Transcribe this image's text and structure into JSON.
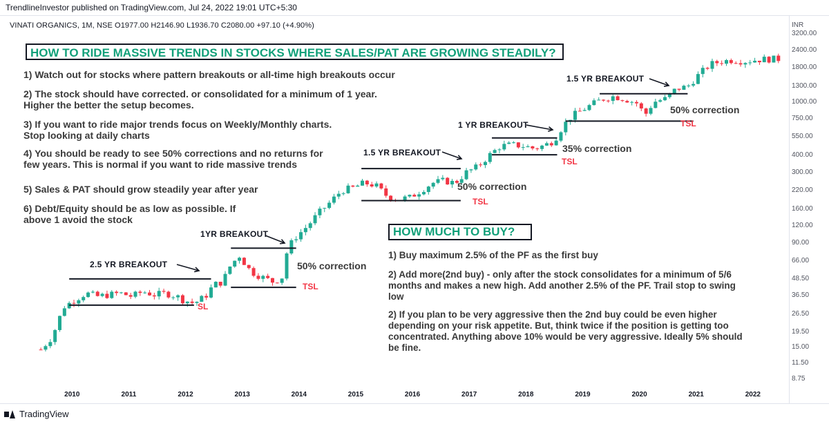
{
  "header": {
    "published": "TrendlineInvestor published on TradingView.com, Jul 24, 2022 19:01 UTC+5:30",
    "symbol_line": "VINATI ORGANICS, 1M, NSE  O1977.00  H2146.90  L1936.70  C2080.00  +97.10 (+4.90%)",
    "currency": "INR"
  },
  "footer": {
    "brand": "TradingView",
    "logo_icon": "tradingview-logo-icon"
  },
  "colors": {
    "up": "#22ab94",
    "down": "#f23645",
    "accent_text": "#12a07a",
    "bg": "#ffffff"
  },
  "title": "HOW TO RIDE MASSIVE TRENDS IN STOCKS WHERE SALES/PAT ARE GROWING STEADILY?",
  "rules": [
    "1) Watch out for stocks where pattern breakouts or all-time high breakouts occur",
    "2) The stock should have corrected. or consolidated for a minimum of 1 year.\nHigher the better the setup becomes.",
    "3) If you want to ride major trends focus on Weekly/Monthly charts.\nStop looking at daily charts",
    "4) You should be ready to see 50% corrections and no returns for\nfew years. This is normal if you want to ride massive trends",
    "5) Sales & PAT should grow steadily year after year",
    "6) Debt/Equity should be as low as possible. If\nabove 1 avoid the stock"
  ],
  "buy_title": "HOW MUCH TO BUY?",
  "buy_rules": [
    "1) Buy maximum 2.5% of the PF as the first buy",
    "2) Add more(2nd buy) - only after the stock consolidates for a minimum of 5/6\nmonths and makes a new high. Add another 2.5% of the PF. Trail stop to swing\nlow",
    "2) If you plan to be very aggressive then the 2nd buy could be even higher\ndepending on your risk appetite.  But, think twice if the position is getting too\nconcentrated. Anything above 10% would be very aggressive. Ideally 5% should\nbe fine."
  ],
  "annotations": {
    "b1": "2.5 YR BREAKOUT",
    "sl": "SL",
    "b2": "1YR BREAKOUT",
    "c1": "50% correction",
    "tsl1": "TSL",
    "b3": "1.5 YR BREAKOUT",
    "c2": "50% correction",
    "tsl2": "TSL",
    "b4": "1 YR BREAKOUT",
    "c3": "35% correction",
    "tsl3": "TSL",
    "b5": "1.5 YR BREAKOUT",
    "c4": "50% correction",
    "tsl4": "TSL"
  },
  "chart_data": {
    "type": "candlestick",
    "title": "VINATI ORGANICS, 1M, NSE",
    "y_scale": "log",
    "y_ticks": [
      "3200.00",
      "2400.00",
      "1800.00",
      "1300.00",
      "1000.00",
      "750.00",
      "550.00",
      "400.00",
      "300.00",
      "220.00",
      "160.00",
      "120.00",
      "90.00",
      "66.00",
      "48.50",
      "36.50",
      "26.50",
      "19.50",
      "15.00",
      "11.50",
      "8.75"
    ],
    "x_ticks": [
      "2010",
      "2011",
      "2012",
      "2013",
      "2014",
      "2015",
      "2016",
      "2017",
      "2018",
      "2019",
      "2020",
      "2021",
      "2022"
    ],
    "x_range": [
      2009.45,
      2022.6
    ],
    "series_close_path": [
      [
        2009.5,
        14.5
      ],
      [
        2009.7,
        18
      ],
      [
        2009.9,
        30
      ],
      [
        2010.1,
        34
      ],
      [
        2010.3,
        38
      ],
      [
        2010.5,
        36
      ],
      [
        2010.7,
        37
      ],
      [
        2010.9,
        38
      ],
      [
        2011.1,
        36
      ],
      [
        2011.3,
        39
      ],
      [
        2011.5,
        37
      ],
      [
        2011.7,
        38
      ],
      [
        2011.9,
        36
      ],
      [
        2012.0,
        34
      ],
      [
        2012.2,
        32
      ],
      [
        2012.4,
        36
      ],
      [
        2012.55,
        44
      ],
      [
        2012.7,
        46
      ],
      [
        2012.85,
        62
      ],
      [
        2013.0,
        72
      ],
      [
        2013.2,
        55
      ],
      [
        2013.4,
        50
      ],
      [
        2013.6,
        46
      ],
      [
        2013.75,
        50
      ],
      [
        2013.85,
        82
      ],
      [
        2014.0,
        100
      ],
      [
        2014.2,
        120
      ],
      [
        2014.4,
        150
      ],
      [
        2014.6,
        180
      ],
      [
        2014.8,
        220
      ],
      [
        2015.0,
        230
      ],
      [
        2015.2,
        250
      ],
      [
        2015.4,
        240
      ],
      [
        2015.6,
        200
      ],
      [
        2015.8,
        190
      ],
      [
        2016.0,
        195
      ],
      [
        2016.2,
        220
      ],
      [
        2016.4,
        250
      ],
      [
        2016.6,
        260
      ],
      [
        2016.8,
        250
      ],
      [
        2017.0,
        300
      ],
      [
        2017.2,
        330
      ],
      [
        2017.4,
        400
      ],
      [
        2017.6,
        470
      ],
      [
        2017.8,
        480
      ],
      [
        2018.0,
        470
      ],
      [
        2018.2,
        450
      ],
      [
        2018.4,
        480
      ],
      [
        2018.55,
        520
      ],
      [
        2018.7,
        660
      ],
      [
        2018.85,
        780
      ],
      [
        2019.0,
        850
      ],
      [
        2019.2,
        950
      ],
      [
        2019.4,
        1050
      ],
      [
        2019.6,
        1100
      ],
      [
        2019.8,
        1050
      ],
      [
        2020.0,
        980
      ],
      [
        2020.15,
        800
      ],
      [
        2020.3,
        1000
      ],
      [
        2020.5,
        1050
      ],
      [
        2020.7,
        1250
      ],
      [
        2020.9,
        1300
      ],
      [
        2021.1,
        1600
      ],
      [
        2021.3,
        1900
      ],
      [
        2021.5,
        2000
      ],
      [
        2021.7,
        2050
      ],
      [
        2021.9,
        2000
      ],
      [
        2022.1,
        2050
      ],
      [
        2022.3,
        2080
      ],
      [
        2022.5,
        2080
      ]
    ],
    "levels": [
      {
        "label": "2.5 YR BREAKOUT",
        "value": 48.5,
        "x": [
          2010.0,
          2012.5
        ]
      },
      {
        "label": "SL",
        "value": 31,
        "x": [
          2010.0,
          2012.2
        ]
      },
      {
        "label": "1YR BREAKOUT",
        "value": 82,
        "x": [
          2012.85,
          2014.0
        ]
      },
      {
        "label": "TSL",
        "value": 42,
        "x": [
          2012.85,
          2014.0
        ]
      },
      {
        "label": "1.5 YR BREAKOUT",
        "value": 320,
        "x": [
          2015.15,
          2016.9
        ]
      },
      {
        "label": "TSL",
        "value": 185,
        "x": [
          2015.15,
          2016.9
        ]
      },
      {
        "label": "1 YR BREAKOUT",
        "value": 540,
        "x": [
          2017.45,
          2018.6
        ]
      },
      {
        "label": "TSL",
        "value": 405,
        "x": [
          2017.45,
          2018.6
        ]
      },
      {
        "label": "1.5 YR BREAKOUT",
        "value": 1150,
        "x": [
          2019.35,
          2020.9
        ]
      },
      {
        "label": "TSL",
        "value": 720,
        "x": [
          2018.75,
          2021.0
        ]
      }
    ]
  }
}
